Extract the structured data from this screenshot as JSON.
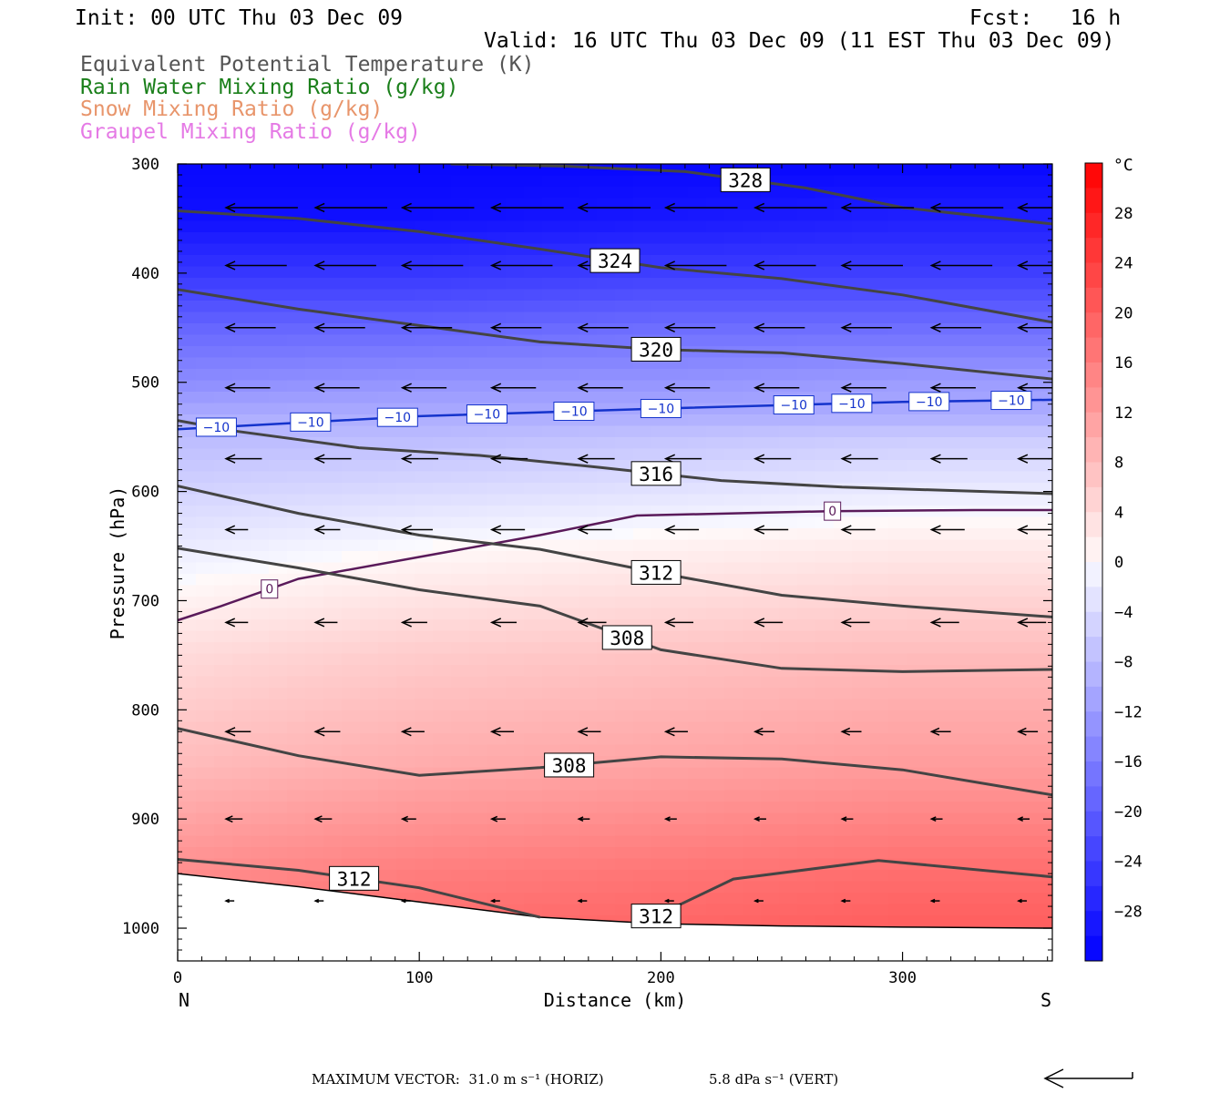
{
  "header": {
    "init": "Init: 00 UTC Thu 03 Dec 09",
    "fcst": "Fcst:   16 h",
    "valid": "Valid: 16 UTC Thu 03 Dec 09 (11 EST Thu 03 Dec 09)"
  },
  "legend": [
    {
      "label": "Equivalent Potential Temperature (K)",
      "color": "#555555"
    },
    {
      "label": "Rain Water Mixing Ratio (g/kg)",
      "color": "#1a7f1a"
    },
    {
      "label": "Snow Mixing Ratio (g/kg)",
      "color": "#e8956b"
    },
    {
      "label": "Graupel Mixing Ratio (g/kg)",
      "color": "#e57ae5"
    }
  ],
  "footer": {
    "max_vector": "MAXIMUM VECTOR:  31.0 m s⁻¹ (HORIZ)",
    "vert": "5.8 dPa s⁻¹ (VERT)"
  },
  "chart_data": {
    "type": "contour cross-section",
    "xlabel": "Distance (km)",
    "ylabel": "Pressure (hPa)",
    "xlim": [
      0,
      362
    ],
    "ylim": [
      1030,
      300
    ],
    "x_ticks": [
      0,
      100,
      200,
      300
    ],
    "y_ticks": [
      300,
      400,
      500,
      600,
      700,
      800,
      900,
      1000
    ],
    "left_end_label": "N",
    "right_end_label": "S",
    "colorbar": {
      "unit": "°C",
      "ticks": [
        28,
        24,
        20,
        16,
        12,
        8,
        4,
        0,
        -4,
        -8,
        -12,
        -16,
        -20,
        -24,
        -28
      ],
      "range": [
        -32,
        32
      ]
    },
    "temperature_field": {
      "x": [
        0,
        100,
        200,
        300,
        362
      ],
      "levels": [
        {
          "p": 300,
          "t": [
            -31,
            -31,
            -31,
            -31,
            -31
          ]
        },
        {
          "p": 350,
          "t": [
            -30,
            -30,
            -29,
            -28,
            -28
          ]
        },
        {
          "p": 400,
          "t": [
            -25,
            -25,
            -24,
            -24,
            -24
          ]
        },
        {
          "p": 450,
          "t": [
            -19,
            -19,
            -18,
            -18,
            -18
          ]
        },
        {
          "p": 500,
          "t": [
            -14,
            -13,
            -13,
            -12,
            -12
          ]
        },
        {
          "p": 530,
          "t": [
            -10,
            -10,
            -10,
            -10,
            -10
          ]
        },
        {
          "p": 550,
          "t": [
            -8,
            -8,
            -7,
            -6,
            -6
          ]
        },
        {
          "p": 600,
          "t": [
            -5,
            -4,
            -3,
            -2,
            -2
          ]
        },
        {
          "p": 650,
          "t": [
            -2,
            0,
            1,
            2,
            2
          ]
        },
        {
          "p": 700,
          "t": [
            1,
            3,
            4,
            5,
            5
          ]
        },
        {
          "p": 750,
          "t": [
            4,
            6,
            7,
            8,
            8
          ]
        },
        {
          "p": 800,
          "t": [
            6,
            8,
            9,
            10,
            10
          ]
        },
        {
          "p": 850,
          "t": [
            8,
            10,
            11,
            12,
            12
          ]
        },
        {
          "p": 900,
          "t": [
            11,
            13,
            14,
            15,
            15
          ]
        },
        {
          "p": 950,
          "t": [
            14,
            16,
            17,
            18,
            18
          ]
        },
        {
          "p": 1000,
          "t": [
            16,
            18,
            19,
            20,
            20
          ]
        }
      ]
    },
    "terrain": {
      "x": [
        0,
        50,
        100,
        150,
        200,
        250,
        300,
        362
      ],
      "p": [
        950,
        962,
        976,
        990,
        996,
        998,
        999,
        1000
      ]
    },
    "isotherms": [
      {
        "value": -10,
        "color": "#1433cc",
        "label": "−10",
        "x": [
          0,
          100,
          200,
          300,
          362
        ],
        "p": [
          543,
          531,
          524,
          518,
          516
        ],
        "label_x": [
          16,
          55,
          91,
          128,
          164,
          200,
          255,
          279,
          311,
          345
        ]
      },
      {
        "value": 0,
        "color": "#5a1a5a",
        "label": "0",
        "x": [
          0,
          18,
          50,
          100,
          150,
          190,
          230,
          270,
          330,
          362
        ],
        "p": [
          718,
          705,
          680,
          660,
          640,
          622,
          620,
          618,
          617,
          617
        ],
        "label_x": [
          38,
          271
        ]
      }
    ],
    "theta_e": [
      {
        "value": 328,
        "label": "328",
        "x": [
          113,
          160,
          210,
          260,
          300,
          362
        ],
        "p": [
          300,
          302,
          307,
          322,
          340,
          355
        ],
        "label_x": [
          235
        ]
      },
      {
        "value": 324,
        "label": "324",
        "x": [
          0,
          50,
          100,
          150,
          200,
          250,
          300,
          362
        ],
        "p": [
          343,
          350,
          362,
          378,
          395,
          405,
          420,
          445
        ],
        "label_x": [
          181
        ]
      },
      {
        "value": 320,
        "label": "320",
        "x": [
          0,
          50,
          100,
          150,
          200,
          250,
          300,
          362
        ],
        "p": [
          415,
          433,
          448,
          463,
          470,
          473,
          483,
          497
        ],
        "label_x": [
          198
        ]
      },
      {
        "value": 316,
        "label": "316",
        "x": [
          0,
          25,
          75,
          125,
          175,
          225,
          275,
          362
        ],
        "p": [
          535,
          545,
          560,
          567,
          578,
          590,
          596,
          602
        ],
        "label_x": [
          198
        ]
      },
      {
        "value": 312,
        "label": "312",
        "x": [
          0,
          50,
          100,
          150,
          200,
          250,
          300,
          362
        ],
        "p": [
          595,
          620,
          640,
          653,
          675,
          695,
          705,
          715
        ],
        "label_x": [
          198
        ]
      },
      {
        "value": 308,
        "label": "308",
        "x": [
          0,
          50,
          100,
          150,
          200,
          250,
          300,
          362
        ],
        "p": [
          652,
          670,
          690,
          705,
          745,
          762,
          765,
          763
        ],
        "label_x": [
          186
        ]
      },
      {
        "value": 308,
        "label": "308",
        "x": [
          0,
          50,
          100,
          150,
          200,
          250,
          300,
          362
        ],
        "p": [
          817,
          842,
          860,
          853,
          843,
          845,
          855,
          878
        ],
        "label_x": [
          162
        ]
      },
      {
        "value": 312,
        "label": "312",
        "x": [
          0,
          50,
          100,
          150
        ],
        "p": [
          937,
          947,
          963,
          990
        ],
        "label_x": [
          73
        ]
      },
      {
        "value": 312,
        "label": "312",
        "x": [
          195,
          230,
          290,
          362
        ],
        "p": [
          992,
          955,
          938,
          953
        ],
        "label_x": [
          198
        ]
      }
    ],
    "wind_vectors": {
      "cols": [
        20,
        57,
        93,
        130,
        166,
        202,
        239,
        275,
        312,
        348
      ],
      "rows": [
        {
          "p": 340,
          "len": [
            26,
            26,
            26,
            26,
            26,
            26,
            26,
            26,
            26,
            26
          ]
        },
        {
          "p": 393,
          "len": [
            22,
            22,
            22,
            22,
            22,
            22,
            22,
            22,
            22,
            22
          ]
        },
        {
          "p": 450,
          "len": [
            18,
            18,
            18,
            18,
            18,
            18,
            18,
            18,
            18,
            18
          ]
        },
        {
          "p": 505,
          "len": [
            16,
            16,
            16,
            16,
            16,
            16,
            16,
            16,
            16,
            16
          ]
        },
        {
          "p": 570,
          "len": [
            13,
            13,
            13,
            13,
            13,
            13,
            13,
            13,
            13,
            13
          ]
        },
        {
          "p": 635,
          "len": [
            8,
            9,
            11,
            12,
            12,
            12,
            12,
            12,
            12,
            12
          ]
        },
        {
          "p": 720,
          "len": [
            8,
            8,
            9,
            9,
            10,
            10,
            10,
            10,
            10,
            10
          ]
        },
        {
          "p": 820,
          "len": [
            9,
            9,
            8,
            8,
            8,
            8,
            7,
            7,
            7,
            7
          ]
        },
        {
          "p": 900,
          "len": [
            6,
            6,
            5,
            5,
            4,
            4,
            4,
            4,
            4,
            4
          ]
        },
        {
          "p": 975,
          "len": [
            3,
            3,
            3,
            3,
            3,
            3,
            3,
            3,
            3,
            3
          ]
        }
      ]
    }
  }
}
